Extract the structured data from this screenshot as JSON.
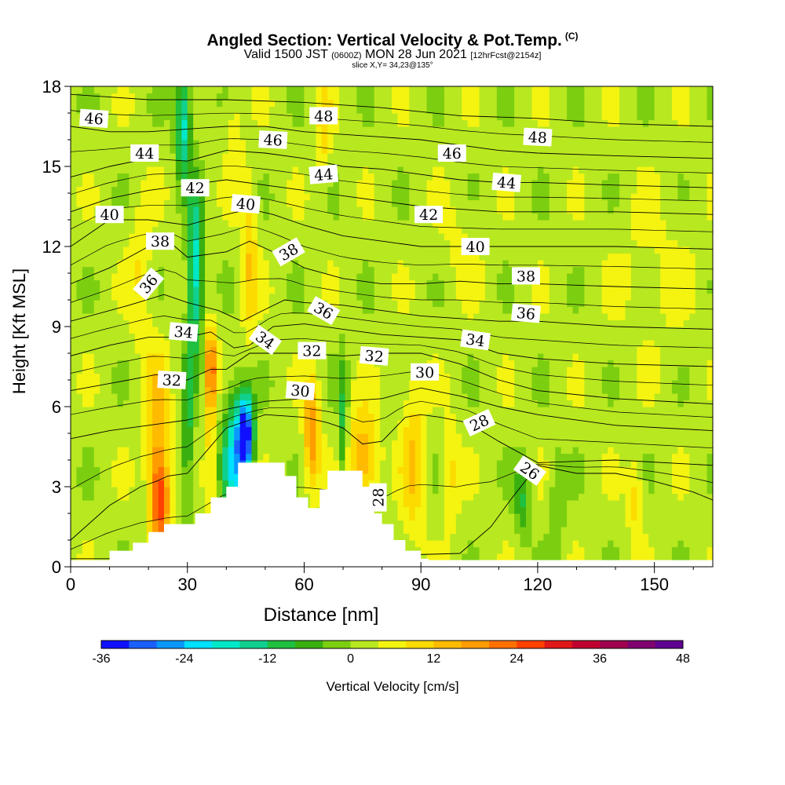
{
  "header": {
    "title": "Angled Section: Vertical Velocity & Pot.Temp.",
    "title_tag": "(C)",
    "valid_prefix": "Valid 1500 JST",
    "valid_utc": "(0600Z)",
    "valid_date": "MON 28 Jun 2021",
    "forecast": "[12hrFcst@2154z]",
    "slice": "slice X,Y= 34,23@135°"
  },
  "chart_data": {
    "type": "heatmap",
    "xlabel": "Distance [nm]",
    "ylabel": "Height [Kft MSL]",
    "xlim": [
      0,
      165
    ],
    "ylim": [
      0,
      18
    ],
    "x_ticks": [
      0,
      30,
      60,
      90,
      120,
      150
    ],
    "y_ticks": [
      0,
      3,
      6,
      9,
      12,
      15,
      18
    ],
    "colorbar": {
      "label": "Vertical Velocity [cm/s]",
      "ticks": [
        -36,
        -24,
        -12,
        0,
        12,
        24,
        36,
        48
      ],
      "colors": [
        "#1010ff",
        "#1a60ff",
        "#0a98ff",
        "#00e0ff",
        "#00e8c8",
        "#10d090",
        "#20c040",
        "#3ab010",
        "#7ccf10",
        "#b8e820",
        "#f4f410",
        "#fcdc00",
        "#ffbb00",
        "#ff9c00",
        "#ff7000",
        "#ff4000",
        "#e01818",
        "#c00030",
        "#a00050",
        "#800070",
        "#600090"
      ]
    },
    "velocity_features": [
      {
        "x": 23,
        "z": 2.5,
        "value": 25,
        "sx": 2.5,
        "sz": 1.8
      },
      {
        "x": 22,
        "z": 5.5,
        "value": 12,
        "sx": 3,
        "sz": 2.5
      },
      {
        "x": 36,
        "z": 7.5,
        "value": 20,
        "sx": 1.5,
        "sz": 1.5
      },
      {
        "x": 36,
        "z": 4.5,
        "value": 8,
        "sx": 1.2,
        "sz": 3
      },
      {
        "x": 45,
        "z": 5,
        "value": -36,
        "sx": 2,
        "sz": 1.5
      },
      {
        "x": 42,
        "z": 4,
        "value": -22,
        "sx": 3,
        "sz": 2.5
      },
      {
        "x": 32,
        "z": 11,
        "value": -22,
        "sx": 2,
        "sz": 3
      },
      {
        "x": 30,
        "z": 5,
        "value": -12,
        "sx": 1.5,
        "sz": 3
      },
      {
        "x": 29,
        "z": 16.5,
        "value": -20,
        "sx": 2,
        "sz": 2
      },
      {
        "x": 46,
        "z": 11.5,
        "value": 10,
        "sx": 2,
        "sz": 3
      },
      {
        "x": 42,
        "z": 16,
        "value": 6,
        "sx": 2,
        "sz": 2
      },
      {
        "x": 62,
        "z": 5,
        "value": 18,
        "sx": 2,
        "sz": 2
      },
      {
        "x": 70,
        "z": 5,
        "value": -12,
        "sx": 1.2,
        "sz": 3
      },
      {
        "x": 75,
        "z": 4,
        "value": 14,
        "sx": 4,
        "sz": 2
      },
      {
        "x": 88,
        "z": 4,
        "value": 10,
        "sx": 3,
        "sz": 3
      },
      {
        "x": 98,
        "z": 3.5,
        "value": 7,
        "sx": 2,
        "sz": 2
      },
      {
        "x": 116,
        "z": 2.5,
        "value": -10,
        "sx": 2,
        "sz": 1.5
      },
      {
        "x": 125,
        "z": 2.5,
        "value": -6,
        "sx": 2,
        "sz": 2
      },
      {
        "x": 145,
        "z": 2.5,
        "value": 8,
        "sx": 2,
        "sz": 1.5
      },
      {
        "x": 65,
        "z": 16.5,
        "value": 8,
        "sx": 2,
        "sz": 2
      },
      {
        "x": 18,
        "z": 11,
        "value": 6,
        "sx": 3,
        "sz": 3
      },
      {
        "x": 100,
        "z": 12,
        "value": 3,
        "sx": 5,
        "sz": 2
      },
      {
        "x": 150,
        "z": 11,
        "value": 3,
        "sx": 10,
        "sz": 3
      }
    ],
    "terrain": [
      [
        10,
        0.6
      ],
      [
        16,
        0.9
      ],
      [
        20,
        1.3
      ],
      [
        24,
        1.6
      ],
      [
        30,
        1.6
      ],
      [
        32,
        2.0
      ],
      [
        36,
        2.6
      ],
      [
        40,
        3.0
      ],
      [
        43,
        3.9
      ],
      [
        51,
        3.9
      ],
      [
        55,
        3.4
      ],
      [
        58,
        2.6
      ],
      [
        61,
        2.2
      ],
      [
        64,
        2.9
      ],
      [
        66,
        3.6
      ],
      [
        72,
        3.6
      ],
      [
        75,
        3.0
      ],
      [
        78,
        2.0
      ],
      [
        80,
        1.6
      ],
      [
        83,
        1.0
      ],
      [
        86,
        0.6
      ],
      [
        90,
        0.3
      ],
      [
        92,
        0
      ]
    ],
    "isentropes": [
      {
        "label": "26",
        "points": [
          [
            0,
            0.3
          ],
          [
            50,
            0.3
          ],
          [
            100,
            0.5
          ],
          [
            108,
            1.5
          ],
          [
            113,
            2.5
          ],
          [
            120,
            3.8
          ],
          [
            130,
            3.5
          ],
          [
            140,
            3.5
          ],
          [
            150,
            3.2
          ],
          [
            160,
            2.8
          ],
          [
            165,
            2.5
          ]
        ]
      },
      {
        "label": "28",
        "points": [
          [
            0,
            1.0
          ],
          [
            10,
            2.3
          ],
          [
            18,
            3.0
          ],
          [
            22,
            3.2
          ],
          [
            25,
            3.4
          ],
          [
            30,
            3.5
          ],
          [
            40,
            5.2
          ],
          [
            50,
            5.7
          ],
          [
            60,
            5.6
          ],
          [
            66,
            5.4
          ],
          [
            70,
            5.2
          ],
          [
            75,
            4.6
          ],
          [
            80,
            4.7
          ],
          [
            86,
            5.6
          ],
          [
            90,
            5.7
          ],
          [
            95,
            5.6
          ],
          [
            102,
            5.4
          ],
          [
            110,
            4.7
          ],
          [
            120,
            3.9
          ],
          [
            140,
            4.0
          ],
          [
            165,
            3.8
          ]
        ]
      },
      {
        "label": "30",
        "points": [
          [
            0,
            4.8
          ],
          [
            10,
            5.1
          ],
          [
            20,
            5.3
          ],
          [
            30,
            5.5
          ],
          [
            40,
            5.9
          ],
          [
            50,
            6.2
          ],
          [
            60,
            6.3
          ],
          [
            70,
            6.2
          ],
          [
            80,
            6.3
          ],
          [
            90,
            6.7
          ],
          [
            100,
            6.4
          ],
          [
            110,
            6.0
          ],
          [
            120,
            5.7
          ],
          [
            140,
            5.3
          ],
          [
            165,
            5.1
          ]
        ]
      },
      {
        "label": "32",
        "points": [
          [
            0,
            6.6
          ],
          [
            15,
            7.0
          ],
          [
            22,
            7.2
          ],
          [
            30,
            7.0
          ],
          [
            36,
            7.4
          ],
          [
            40,
            7.4
          ],
          [
            46,
            8.0
          ],
          [
            54,
            8.0
          ],
          [
            60,
            8.0
          ],
          [
            70,
            7.9
          ],
          [
            80,
            8.0
          ],
          [
            90,
            8.0
          ],
          [
            100,
            7.6
          ],
          [
            110,
            7.0
          ],
          [
            120,
            6.6
          ],
          [
            140,
            6.3
          ],
          [
            165,
            6.1
          ]
        ]
      },
      {
        "label": "34",
        "points": [
          [
            0,
            7.9
          ],
          [
            10,
            8.3
          ],
          [
            20,
            8.6
          ],
          [
            30,
            8.6
          ],
          [
            36,
            8.8
          ],
          [
            42,
            8.2
          ],
          [
            46,
            8.3
          ],
          [
            52,
            9.0
          ],
          [
            60,
            9.1
          ],
          [
            70,
            8.9
          ],
          [
            80,
            8.7
          ],
          [
            90,
            8.6
          ],
          [
            100,
            8.5
          ],
          [
            110,
            8.0
          ],
          [
            120,
            7.8
          ],
          [
            140,
            7.6
          ],
          [
            165,
            7.5
          ]
        ]
      },
      {
        "label": "36",
        "points": [
          [
            0,
            9.2
          ],
          [
            15,
            9.8
          ],
          [
            24,
            10.2
          ],
          [
            30,
            9.9
          ],
          [
            38,
            9.6
          ],
          [
            44,
            9.2
          ],
          [
            48,
            9.5
          ],
          [
            55,
            10.0
          ],
          [
            60,
            9.9
          ],
          [
            70,
            9.8
          ],
          [
            80,
            9.6
          ],
          [
            90,
            9.4
          ],
          [
            100,
            9.3
          ],
          [
            110,
            9.2
          ],
          [
            120,
            9.2
          ],
          [
            140,
            9.0
          ],
          [
            165,
            8.9
          ]
        ]
      },
      {
        "label": "38",
        "points": [
          [
            0,
            10.6
          ],
          [
            10,
            11.2
          ],
          [
            20,
            12.0
          ],
          [
            26,
            12.1
          ],
          [
            30,
            11.6
          ],
          [
            40,
            11.8
          ],
          [
            46,
            12.2
          ],
          [
            55,
            11.6
          ],
          [
            60,
            11.2
          ],
          [
            70,
            10.8
          ],
          [
            80,
            10.6
          ],
          [
            90,
            10.6
          ],
          [
            100,
            10.7
          ],
          [
            110,
            10.6
          ],
          [
            120,
            10.6
          ],
          [
            140,
            10.5
          ],
          [
            165,
            10.4
          ]
        ]
      },
      {
        "label": "40",
        "points": [
          [
            0,
            12.0
          ],
          [
            10,
            13.0
          ],
          [
            20,
            13.0
          ],
          [
            30,
            12.8
          ],
          [
            40,
            13.2
          ],
          [
            46,
            13.4
          ],
          [
            52,
            13.2
          ],
          [
            60,
            12.8
          ],
          [
            70,
            12.4
          ],
          [
            80,
            12.2
          ],
          [
            90,
            12.0
          ],
          [
            100,
            12.0
          ],
          [
            110,
            12.0
          ],
          [
            120,
            12.0
          ],
          [
            140,
            12.0
          ],
          [
            165,
            11.9
          ]
        ]
      },
      {
        "label": "42",
        "points": [
          [
            0,
            13.3
          ],
          [
            10,
            13.8
          ],
          [
            20,
            14.1
          ],
          [
            30,
            14.3
          ],
          [
            40,
            14.5
          ],
          [
            50,
            14.3
          ],
          [
            60,
            14.1
          ],
          [
            70,
            13.9
          ],
          [
            80,
            13.7
          ],
          [
            90,
            13.5
          ],
          [
            100,
            13.4
          ],
          [
            110,
            13.3
          ],
          [
            120,
            13.3
          ],
          [
            140,
            13.3
          ],
          [
            165,
            13.2
          ]
        ]
      },
      {
        "label": "44",
        "points": [
          [
            0,
            14.6
          ],
          [
            10,
            15.0
          ],
          [
            20,
            15.3
          ],
          [
            30,
            15.2
          ],
          [
            40,
            15.6
          ],
          [
            50,
            15.5
          ],
          [
            60,
            15.3
          ],
          [
            70,
            15.0
          ],
          [
            80,
            14.9
          ],
          [
            90,
            14.7
          ],
          [
            100,
            14.5
          ],
          [
            110,
            14.4
          ],
          [
            120,
            14.4
          ],
          [
            140,
            14.3
          ],
          [
            165,
            14.2
          ]
        ]
      },
      {
        "label": "46",
        "points": [
          [
            0,
            16.5
          ],
          [
            10,
            16.3
          ],
          [
            20,
            16.3
          ],
          [
            30,
            16.4
          ],
          [
            40,
            16.5
          ],
          [
            50,
            16.5
          ],
          [
            60,
            16.3
          ],
          [
            70,
            16.2
          ],
          [
            80,
            16.1
          ],
          [
            90,
            16.0
          ],
          [
            100,
            15.8
          ],
          [
            110,
            15.6
          ],
          [
            120,
            15.5
          ],
          [
            140,
            15.4
          ],
          [
            165,
            15.3
          ]
        ]
      },
      {
        "label": "48",
        "points": [
          [
            0,
            17.7
          ],
          [
            20,
            17.5
          ],
          [
            40,
            17.5
          ],
          [
            60,
            17.4
          ],
          [
            80,
            17.2
          ],
          [
            100,
            16.9
          ],
          [
            120,
            16.8
          ],
          [
            140,
            16.6
          ],
          [
            165,
            16.5
          ]
        ]
      }
    ],
    "contour_labels": [
      {
        "text": "46",
        "x": 6,
        "z": 16.8,
        "angle": -4
      },
      {
        "text": "44",
        "x": 19,
        "z": 15.5,
        "angle": 0
      },
      {
        "text": "42",
        "x": 32,
        "z": 14.2,
        "angle": 0
      },
      {
        "text": "40",
        "x": 10,
        "z": 13.2,
        "angle": 0
      },
      {
        "text": "38",
        "x": 23,
        "z": 12.2,
        "angle": 0
      },
      {
        "text": "36",
        "x": 20,
        "z": 10.6,
        "angle": 50
      },
      {
        "text": "34",
        "x": 29,
        "z": 8.8,
        "angle": -5
      },
      {
        "text": "32",
        "x": 26,
        "z": 7.0,
        "angle": -3
      },
      {
        "text": "40",
        "x": 45,
        "z": 13.6,
        "angle": -5
      },
      {
        "text": "46",
        "x": 52,
        "z": 16.0,
        "angle": -3
      },
      {
        "text": "48",
        "x": 65,
        "z": 16.9,
        "angle": 0
      },
      {
        "text": "44",
        "x": 65,
        "z": 14.7,
        "angle": 5
      },
      {
        "text": "38",
        "x": 56,
        "z": 11.8,
        "angle": 30
      },
      {
        "text": "36",
        "x": 65,
        "z": 9.6,
        "angle": -30
      },
      {
        "text": "34",
        "x": 50,
        "z": 8.5,
        "angle": -35
      },
      {
        "text": "32",
        "x": 62,
        "z": 8.1,
        "angle": 0
      },
      {
        "text": "30",
        "x": 59,
        "z": 6.6,
        "angle": -5
      },
      {
        "text": "32",
        "x": 78,
        "z": 7.9,
        "angle": -5
      },
      {
        "text": "30",
        "x": 91,
        "z": 7.3,
        "angle": 0
      },
      {
        "text": "46",
        "x": 98,
        "z": 15.5,
        "angle": 0
      },
      {
        "text": "44",
        "x": 112,
        "z": 14.4,
        "angle": -5
      },
      {
        "text": "42",
        "x": 92,
        "z": 13.2,
        "angle": 0
      },
      {
        "text": "40",
        "x": 104,
        "z": 12.0,
        "angle": 0
      },
      {
        "text": "38",
        "x": 117,
        "z": 10.9,
        "angle": 0
      },
      {
        "text": "36",
        "x": 117,
        "z": 9.5,
        "angle": -5
      },
      {
        "text": "34",
        "x": 104,
        "z": 8.5,
        "angle": -8
      },
      {
        "text": "48",
        "x": 120,
        "z": 16.1,
        "angle": -3
      },
      {
        "text": "28",
        "x": 105,
        "z": 5.4,
        "angle": 25
      },
      {
        "text": "26",
        "x": 118,
        "z": 3.6,
        "angle": -35
      },
      {
        "text": "28",
        "x": 79,
        "z": 2.6,
        "angle": 90
      }
    ]
  }
}
